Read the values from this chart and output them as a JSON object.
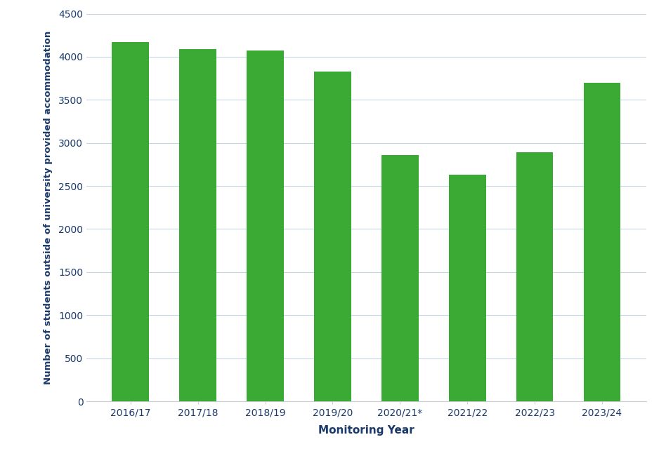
{
  "categories": [
    "2016/17",
    "2017/18",
    "2018/19",
    "2019/20",
    "2020/21*",
    "2021/22",
    "2022/23",
    "2023/24"
  ],
  "values": [
    4170,
    4085,
    4075,
    3830,
    2860,
    2630,
    2890,
    3695
  ],
  "bar_color": "#3aaa35",
  "ylabel": "Number of students outside of university provided accommodation",
  "xlabel": "Monitoring Year",
  "ylim": [
    0,
    4500
  ],
  "yticks": [
    0,
    500,
    1000,
    1500,
    2000,
    2500,
    3000,
    3500,
    4000,
    4500
  ],
  "background_color": "#ffffff",
  "grid_color": "#c8d4e0",
  "axis_label_color": "#1a3a6c",
  "tick_label_color": "#1a3a6c",
  "bar_width": 0.55
}
